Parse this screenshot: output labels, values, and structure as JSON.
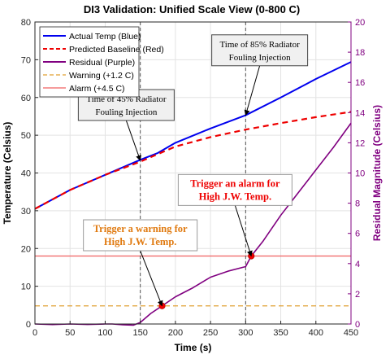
{
  "chart_data": {
    "type": "line",
    "title": "DI3 Validation: Unified Scale View (0-800 C)",
    "xlabel": "Time (s)",
    "ylabel_left": "Temperature (Celsius)",
    "ylabel_right": "Residual Magnitude (Celsius)",
    "xlim": [
      0,
      450
    ],
    "ylim_left": [
      0,
      80
    ],
    "ylim_right": [
      0,
      20
    ],
    "x_ticks": [
      0,
      50,
      100,
      150,
      200,
      250,
      300,
      350,
      400,
      450
    ],
    "y_ticks_left": [
      0,
      10,
      20,
      30,
      40,
      50,
      60,
      70,
      80
    ],
    "y_ticks_right": [
      0,
      2,
      4,
      6,
      8,
      10,
      12,
      14,
      16,
      18,
      20
    ],
    "grid": true,
    "legend_position": "top-left",
    "legend": [
      {
        "label": "Actual Temp (Blue)",
        "color": "#0000ee",
        "style": "solid"
      },
      {
        "label": "Predicted Baseline (Red)",
        "color": "#ee0000",
        "style": "dashed"
      },
      {
        "label": "Residual (Purple)",
        "color": "#800080",
        "style": "solid"
      },
      {
        "label": "Warning (+1.2 C)",
        "color": "#e0a030",
        "style": "dashed"
      },
      {
        "label": "Alarm (+4.5 C)",
        "color": "#f06060",
        "style": "solid"
      }
    ],
    "series": [
      {
        "name": "Actual Temp (Blue)",
        "axis": "left",
        "color": "#0000ee",
        "x": [
          0,
          50,
          100,
          150,
          175,
          200,
          250,
          300,
          350,
          400,
          450
        ],
        "y": [
          30.5,
          35.5,
          39.5,
          43.5,
          45.3,
          48,
          51.8,
          55.3,
          60,
          64.9,
          69.4
        ]
      },
      {
        "name": "Predicted Baseline (Red)",
        "axis": "left",
        "color": "#ee0000",
        "x": [
          0,
          50,
          100,
          150,
          175,
          200,
          250,
          300,
          350,
          400,
          450
        ],
        "y": [
          30.5,
          35.5,
          39.5,
          43,
          45,
          47,
          49.5,
          51.5,
          53.2,
          54.8,
          56.2
        ]
      },
      {
        "name": "Residual (Purple)",
        "axis": "right",
        "color": "#800080",
        "x": [
          0,
          25,
          50,
          75,
          100,
          110,
          125,
          140,
          150,
          165,
          181,
          200,
          225,
          250,
          275,
          300,
          308,
          325,
          350,
          375,
          400,
          425,
          450
        ],
        "y": [
          0,
          -0.04,
          0,
          -0.03,
          0,
          0,
          -0.05,
          -0.08,
          0.1,
          0.7,
          1.2,
          1.8,
          2.4,
          3.1,
          3.5,
          3.8,
          4.5,
          5.5,
          7.2,
          8.7,
          10.2,
          11.7,
          13.3
        ]
      },
      {
        "name": "Warning (+1.2 C)",
        "axis": "right",
        "color": "#e0a030",
        "x": [
          0,
          450
        ],
        "y": [
          1.2,
          1.2
        ]
      },
      {
        "name": "Alarm (+4.5 C)",
        "axis": "right",
        "color": "#f06060",
        "x": [
          0,
          450
        ],
        "y": [
          4.5,
          4.5
        ]
      }
    ],
    "event_lines": [
      {
        "x": 150
      },
      {
        "x": 300
      }
    ],
    "markers": [
      {
        "x": 181,
        "y": 1.2,
        "axis": "right",
        "color": "#ee0000"
      },
      {
        "x": 308,
        "y": 4.5,
        "axis": "right",
        "color": "#ee0000"
      }
    ],
    "annotations": [
      {
        "lines": [
          "Time of 45% Radiator",
          "Fouling Injection"
        ],
        "type": "note",
        "arrow_to": {
          "x": 150,
          "y": 43.3,
          "axis": "left"
        },
        "anchor": {
          "x": 130,
          "y": 58,
          "axis": "left"
        }
      },
      {
        "lines": [
          "Time of 85% Radiator",
          "Fouling Injection"
        ],
        "type": "note",
        "arrow_to": {
          "x": 300,
          "y": 55.3,
          "axis": "left"
        },
        "anchor": {
          "x": 320,
          "y": 72.5,
          "axis": "left"
        }
      },
      {
        "lines": [
          "Trigger an alarm for",
          "High J.W. Temp."
        ],
        "type": "trigger",
        "color": "#ee0000",
        "arrow_to": {
          "x": 308,
          "y": 4.5,
          "axis": "right"
        },
        "anchor": {
          "x": 285,
          "y": 35.5,
          "axis": "left"
        }
      },
      {
        "lines": [
          "Trigger a warning for",
          "High J.W. Temp."
        ],
        "type": "trigger",
        "color": "#e07a10",
        "arrow_to": {
          "x": 181,
          "y": 1.2,
          "axis": "right"
        },
        "anchor": {
          "x": 150,
          "y": 23.5,
          "axis": "left"
        }
      }
    ]
  }
}
